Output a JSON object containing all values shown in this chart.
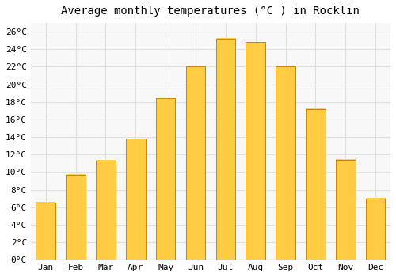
{
  "title": "Average monthly temperatures (°C ) in Rocklin",
  "months": [
    "Jan",
    "Feb",
    "Mar",
    "Apr",
    "May",
    "Jun",
    "Jul",
    "Aug",
    "Sep",
    "Oct",
    "Nov",
    "Dec"
  ],
  "temperatures": [
    6.5,
    9.7,
    11.3,
    13.8,
    18.4,
    22.0,
    25.2,
    24.8,
    22.0,
    17.2,
    11.4,
    7.0
  ],
  "bar_color_top": "#FFCC44",
  "bar_color_bottom": "#F5A623",
  "bar_edge_color": "#CC8800",
  "background_color": "#ffffff",
  "plot_bg_color": "#f8f8f8",
  "grid_color": "#e0e0e0",
  "title_fontsize": 10,
  "tick_label_fontsize": 8,
  "ylim": [
    0,
    27
  ],
  "ytick_step": 2
}
